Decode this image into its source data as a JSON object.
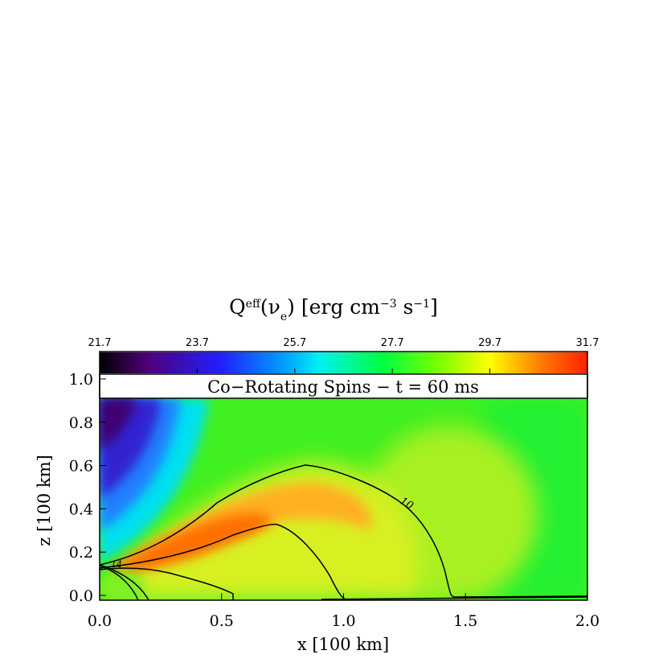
{
  "chart_data": {
    "type": "heatmap",
    "title_parts": [
      "Q",
      "eff",
      "(ν",
      "e",
      ") [erg cm",
      "−3",
      " s",
      "−1",
      "]"
    ],
    "banner": "Co−Rotating Spins − t = 60 ms",
    "x_label": "x [100 km]",
    "y_label": "z [100 km]",
    "xlim": [
      0,
      2
    ],
    "xticks": [
      {
        "value": 0,
        "label": "0.0"
      },
      0.5,
      {
        "value": 1,
        "label": "1.0"
      },
      1.5,
      {
        "value": 2,
        "label": "2.0"
      }
    ],
    "ylim": [
      -0.02,
      1.13
    ],
    "yticks": [
      {
        "value": 0,
        "label": "0.0"
      },
      0.2,
      0.4,
      0.6,
      0.8,
      {
        "value": 1,
        "label": "1.0"
      }
    ],
    "colorbar_lim": [
      21.7,
      31.7
    ],
    "colorbar_ticks": [
      21.7,
      23.7,
      25.7,
      27.7,
      29.7,
      31.7
    ],
    "contour_labels": [
      "10",
      "14"
    ]
  }
}
